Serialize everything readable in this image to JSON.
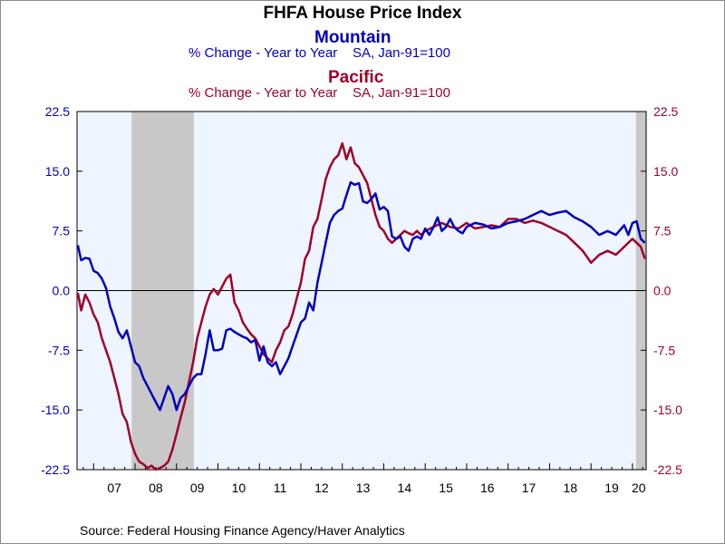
{
  "chart_data": {
    "type": "line",
    "title": "FHFA House Price Index",
    "series_headers": [
      {
        "name": "Mountain",
        "subtitle": "% Change - Year to Year    SA, Jan-91=100",
        "color": "#0000c0"
      },
      {
        "name": "Pacific",
        "subtitle": "% Change - Year to Year    SA, Jan-91=100",
        "color": "#a0002a"
      }
    ],
    "left_ticks": [
      "22.5",
      "15.0",
      "7.5",
      "0.0",
      "-7.5",
      "-15.0",
      "-22.5"
    ],
    "right_ticks": [
      "22.5",
      "15.0",
      "7.5",
      "0.0",
      "-7.5",
      "-15.0",
      "-22.5"
    ],
    "x_tick_labels": [
      "07",
      "08",
      "09",
      "10",
      "11",
      "12",
      "13",
      "14",
      "15",
      "16",
      "17",
      "18",
      "19",
      "20"
    ],
    "ylim": [
      -22.5,
      22.5
    ],
    "xlim": [
      2006.6,
      2020.33
    ],
    "recessions": [
      [
        2007.917,
        2009.417
      ],
      [
        2020.083,
        2020.33
      ]
    ],
    "plot_background": "#eef5fe",
    "recession_color": "#c8c8c8",
    "source": "Source:  Federal Housing Finance Agency/Haver Analytics",
    "series": [
      {
        "name": "Mountain",
        "color": "#0000c0",
        "x": [
          2006.62,
          2006.7,
          2006.8,
          2006.9,
          2007.0,
          2007.1,
          2007.2,
          2007.3,
          2007.4,
          2007.5,
          2007.6,
          2007.7,
          2007.8,
          2007.9,
          2008.0,
          2008.1,
          2008.2,
          2008.3,
          2008.4,
          2008.5,
          2008.6,
          2008.7,
          2008.8,
          2008.9,
          2009.0,
          2009.1,
          2009.2,
          2009.3,
          2009.4,
          2009.5,
          2009.6,
          2009.7,
          2009.8,
          2009.9,
          2010.0,
          2010.1,
          2010.2,
          2010.3,
          2010.4,
          2010.5,
          2010.6,
          2010.7,
          2010.8,
          2010.9,
          2011.0,
          2011.1,
          2011.2,
          2011.3,
          2011.4,
          2011.5,
          2011.6,
          2011.7,
          2011.8,
          2011.9,
          2012.0,
          2012.1,
          2012.2,
          2012.3,
          2012.4,
          2012.5,
          2012.6,
          2012.7,
          2012.8,
          2012.9,
          2013.0,
          2013.1,
          2013.2,
          2013.3,
          2013.4,
          2013.5,
          2013.6,
          2013.7,
          2013.8,
          2013.9,
          2014.0,
          2014.1,
          2014.2,
          2014.3,
          2014.4,
          2014.5,
          2014.6,
          2014.7,
          2014.8,
          2014.9,
          2015.0,
          2015.1,
          2015.2,
          2015.3,
          2015.4,
          2015.5,
          2015.6,
          2015.7,
          2015.8,
          2015.9,
          2016.0,
          2016.2,
          2016.4,
          2016.6,
          2016.8,
          2017.0,
          2017.2,
          2017.4,
          2017.6,
          2017.8,
          2018.0,
          2018.2,
          2018.4,
          2018.6,
          2018.8,
          2019.0,
          2019.2,
          2019.4,
          2019.6,
          2019.8,
          2019.9,
          2020.0,
          2020.1,
          2020.2,
          2020.3
        ],
        "values": [
          5.7,
          3.8,
          4.1,
          4.0,
          2.5,
          2.2,
          1.5,
          0.3,
          -2.0,
          -3.5,
          -5.2,
          -6.0,
          -5.0,
          -7.0,
          -9.0,
          -9.5,
          -11.0,
          -12.0,
          -13.0,
          -14.0,
          -15.0,
          -13.5,
          -12.0,
          -13.0,
          -15.0,
          -13.5,
          -13.0,
          -12.0,
          -11.0,
          -10.5,
          -10.5,
          -8.0,
          -5.0,
          -7.5,
          -7.5,
          -7.3,
          -5.0,
          -4.8,
          -5.2,
          -5.5,
          -5.8,
          -6.0,
          -6.5,
          -6.2,
          -8.8,
          -7.0,
          -9.0,
          -9.5,
          -9.0,
          -10.5,
          -9.5,
          -8.5,
          -7.0,
          -5.5,
          -4.0,
          -3.5,
          -1.5,
          -2.5,
          1.0,
          3.5,
          6.0,
          8.5,
          9.5,
          10.0,
          10.3,
          12.0,
          13.6,
          13.3,
          13.5,
          11.2,
          11.0,
          11.5,
          12.2,
          10.2,
          10.5,
          10.0,
          6.8,
          6.5,
          6.8,
          5.5,
          5.0,
          6.5,
          6.8,
          6.5,
          7.8,
          7.0,
          8.0,
          9.2,
          7.5,
          8.0,
          9.0,
          8.0,
          7.5,
          7.2,
          8.0,
          8.5,
          8.3,
          7.8,
          8.0,
          8.5,
          8.7,
          9.0,
          9.5,
          10.0,
          9.5,
          9.8,
          10.0,
          9.2,
          8.7,
          8.0,
          7.0,
          7.5,
          7.0,
          8.2,
          7.0,
          8.5,
          8.7,
          6.5,
          6.0
        ]
      },
      {
        "name": "Pacific",
        "color": "#a0002a",
        "x": [
          2006.62,
          2006.7,
          2006.8,
          2006.9,
          2007.0,
          2007.1,
          2007.2,
          2007.3,
          2007.4,
          2007.5,
          2007.6,
          2007.7,
          2007.8,
          2007.9,
          2008.0,
          2008.1,
          2008.2,
          2008.3,
          2008.4,
          2008.5,
          2008.6,
          2008.7,
          2008.8,
          2008.9,
          2009.0,
          2009.1,
          2009.2,
          2009.3,
          2009.4,
          2009.5,
          2009.6,
          2009.7,
          2009.8,
          2009.9,
          2010.0,
          2010.1,
          2010.2,
          2010.3,
          2010.4,
          2010.5,
          2010.6,
          2010.7,
          2010.8,
          2010.9,
          2011.0,
          2011.1,
          2011.2,
          2011.3,
          2011.4,
          2011.5,
          2011.6,
          2011.7,
          2011.8,
          2011.9,
          2012.0,
          2012.1,
          2012.2,
          2012.3,
          2012.4,
          2012.5,
          2012.6,
          2012.7,
          2012.8,
          2012.9,
          2013.0,
          2013.1,
          2013.2,
          2013.3,
          2013.4,
          2013.5,
          2013.6,
          2013.7,
          2013.8,
          2013.9,
          2014.0,
          2014.1,
          2014.2,
          2014.3,
          2014.4,
          2014.5,
          2014.6,
          2014.7,
          2014.8,
          2014.9,
          2015.0,
          2015.2,
          2015.4,
          2015.6,
          2015.8,
          2016.0,
          2016.2,
          2016.4,
          2016.6,
          2016.8,
          2017.0,
          2017.2,
          2017.4,
          2017.6,
          2017.8,
          2018.0,
          2018.2,
          2018.4,
          2018.6,
          2018.8,
          2019.0,
          2019.2,
          2019.4,
          2019.6,
          2019.8,
          2020.0,
          2020.1,
          2020.2,
          2020.3
        ],
        "values": [
          -0.3,
          -2.5,
          -0.5,
          -1.5,
          -3.0,
          -4.0,
          -6.0,
          -7.5,
          -9.0,
          -11.0,
          -13.0,
          -15.5,
          -16.5,
          -19.0,
          -20.5,
          -21.5,
          -21.8,
          -22.3,
          -22.0,
          -22.5,
          -22.3,
          -22.0,
          -21.5,
          -20.0,
          -18.0,
          -16.0,
          -14.0,
          -11.5,
          -9.0,
          -6.0,
          -4.0,
          -2.0,
          -0.5,
          0.2,
          -0.5,
          0.5,
          1.5,
          2.0,
          -1.5,
          -2.5,
          -4.0,
          -4.8,
          -5.5,
          -6.0,
          -7.0,
          -8.0,
          -8.5,
          -9.0,
          -7.5,
          -6.5,
          -5.0,
          -4.5,
          -3.0,
          -1.0,
          1.0,
          4.0,
          5.0,
          8.0,
          9.0,
          11.5,
          14.0,
          15.5,
          16.5,
          17.0,
          18.5,
          16.5,
          18.0,
          16.0,
          15.5,
          14.5,
          13.5,
          11.5,
          9.5,
          8.0,
          7.5,
          6.5,
          6.0,
          6.5,
          7.0,
          7.5,
          7.2,
          7.0,
          7.5,
          7.0,
          7.5,
          8.0,
          8.5,
          8.0,
          7.8,
          8.5,
          7.8,
          8.0,
          8.2,
          8.0,
          9.0,
          9.0,
          8.5,
          8.8,
          8.5,
          8.0,
          7.5,
          7.0,
          6.0,
          5.0,
          3.5,
          4.5,
          5.0,
          4.5,
          5.5,
          6.5,
          6.0,
          5.5,
          4.0
        ]
      }
    ]
  }
}
